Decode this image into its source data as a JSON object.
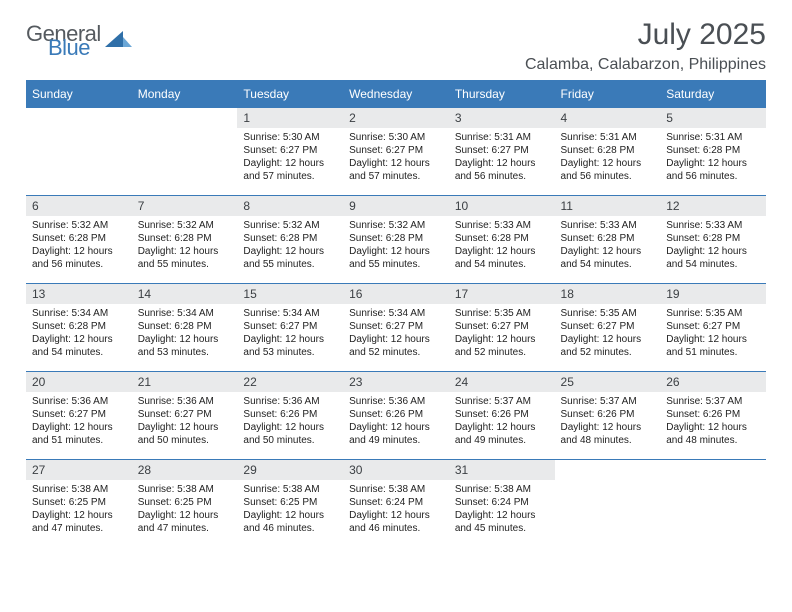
{
  "logo": {
    "word1": "General",
    "word2": "Blue"
  },
  "colors": {
    "accent": "#3a7ab8",
    "header_bg": "#3a7ab8",
    "header_text": "#ffffff",
    "daynum_bg": "#e9eaeb",
    "body_text": "#222222",
    "title_text": "#4a4f54",
    "border": "#3a7ab8"
  },
  "title": "July 2025",
  "location": "Calamba, Calabarzon, Philippines",
  "weekdays": [
    "Sunday",
    "Monday",
    "Tuesday",
    "Wednesday",
    "Thursday",
    "Friday",
    "Saturday"
  ],
  "calendar": {
    "type": "table",
    "columns": 7,
    "rows": 5,
    "leading_blanks": 2,
    "cell_fontsize": 10,
    "daynum_fontsize": 12,
    "header_fontsize": 12
  },
  "days": [
    {
      "n": "1",
      "sunrise": "5:30 AM",
      "sunset": "6:27 PM",
      "daylight": "12 hours and 57 minutes."
    },
    {
      "n": "2",
      "sunrise": "5:30 AM",
      "sunset": "6:27 PM",
      "daylight": "12 hours and 57 minutes."
    },
    {
      "n": "3",
      "sunrise": "5:31 AM",
      "sunset": "6:27 PM",
      "daylight": "12 hours and 56 minutes."
    },
    {
      "n": "4",
      "sunrise": "5:31 AM",
      "sunset": "6:28 PM",
      "daylight": "12 hours and 56 minutes."
    },
    {
      "n": "5",
      "sunrise": "5:31 AM",
      "sunset": "6:28 PM",
      "daylight": "12 hours and 56 minutes."
    },
    {
      "n": "6",
      "sunrise": "5:32 AM",
      "sunset": "6:28 PM",
      "daylight": "12 hours and 56 minutes."
    },
    {
      "n": "7",
      "sunrise": "5:32 AM",
      "sunset": "6:28 PM",
      "daylight": "12 hours and 55 minutes."
    },
    {
      "n": "8",
      "sunrise": "5:32 AM",
      "sunset": "6:28 PM",
      "daylight": "12 hours and 55 minutes."
    },
    {
      "n": "9",
      "sunrise": "5:32 AM",
      "sunset": "6:28 PM",
      "daylight": "12 hours and 55 minutes."
    },
    {
      "n": "10",
      "sunrise": "5:33 AM",
      "sunset": "6:28 PM",
      "daylight": "12 hours and 54 minutes."
    },
    {
      "n": "11",
      "sunrise": "5:33 AM",
      "sunset": "6:28 PM",
      "daylight": "12 hours and 54 minutes."
    },
    {
      "n": "12",
      "sunrise": "5:33 AM",
      "sunset": "6:28 PM",
      "daylight": "12 hours and 54 minutes."
    },
    {
      "n": "13",
      "sunrise": "5:34 AM",
      "sunset": "6:28 PM",
      "daylight": "12 hours and 54 minutes."
    },
    {
      "n": "14",
      "sunrise": "5:34 AM",
      "sunset": "6:28 PM",
      "daylight": "12 hours and 53 minutes."
    },
    {
      "n": "15",
      "sunrise": "5:34 AM",
      "sunset": "6:27 PM",
      "daylight": "12 hours and 53 minutes."
    },
    {
      "n": "16",
      "sunrise": "5:34 AM",
      "sunset": "6:27 PM",
      "daylight": "12 hours and 52 minutes."
    },
    {
      "n": "17",
      "sunrise": "5:35 AM",
      "sunset": "6:27 PM",
      "daylight": "12 hours and 52 minutes."
    },
    {
      "n": "18",
      "sunrise": "5:35 AM",
      "sunset": "6:27 PM",
      "daylight": "12 hours and 52 minutes."
    },
    {
      "n": "19",
      "sunrise": "5:35 AM",
      "sunset": "6:27 PM",
      "daylight": "12 hours and 51 minutes."
    },
    {
      "n": "20",
      "sunrise": "5:36 AM",
      "sunset": "6:27 PM",
      "daylight": "12 hours and 51 minutes."
    },
    {
      "n": "21",
      "sunrise": "5:36 AM",
      "sunset": "6:27 PM",
      "daylight": "12 hours and 50 minutes."
    },
    {
      "n": "22",
      "sunrise": "5:36 AM",
      "sunset": "6:26 PM",
      "daylight": "12 hours and 50 minutes."
    },
    {
      "n": "23",
      "sunrise": "5:36 AM",
      "sunset": "6:26 PM",
      "daylight": "12 hours and 49 minutes."
    },
    {
      "n": "24",
      "sunrise": "5:37 AM",
      "sunset": "6:26 PM",
      "daylight": "12 hours and 49 minutes."
    },
    {
      "n": "25",
      "sunrise": "5:37 AM",
      "sunset": "6:26 PM",
      "daylight": "12 hours and 48 minutes."
    },
    {
      "n": "26",
      "sunrise": "5:37 AM",
      "sunset": "6:26 PM",
      "daylight": "12 hours and 48 minutes."
    },
    {
      "n": "27",
      "sunrise": "5:38 AM",
      "sunset": "6:25 PM",
      "daylight": "12 hours and 47 minutes."
    },
    {
      "n": "28",
      "sunrise": "5:38 AM",
      "sunset": "6:25 PM",
      "daylight": "12 hours and 47 minutes."
    },
    {
      "n": "29",
      "sunrise": "5:38 AM",
      "sunset": "6:25 PM",
      "daylight": "12 hours and 46 minutes."
    },
    {
      "n": "30",
      "sunrise": "5:38 AM",
      "sunset": "6:24 PM",
      "daylight": "12 hours and 46 minutes."
    },
    {
      "n": "31",
      "sunrise": "5:38 AM",
      "sunset": "6:24 PM",
      "daylight": "12 hours and 45 minutes."
    }
  ],
  "labels": {
    "sunrise": "Sunrise:",
    "sunset": "Sunset:",
    "daylight": "Daylight:"
  }
}
